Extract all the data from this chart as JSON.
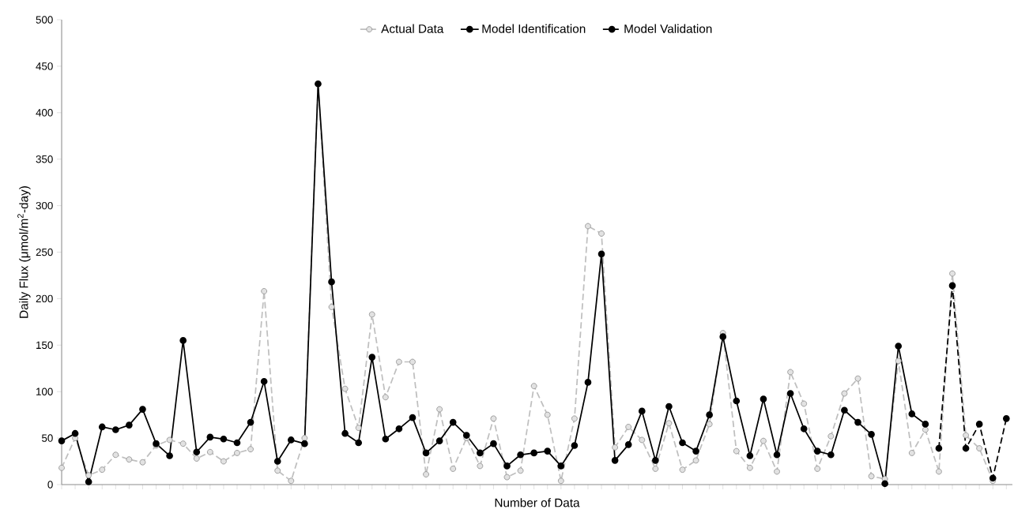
{
  "chart_data": {
    "type": "line",
    "xlabel": "Number of Data",
    "ylabel": "Daily Flux (μmol/m$^{2}$-day)",
    "categories": [
      null,
      null,
      null,
      null,
      null,
      null,
      null,
      null,
      null,
      null,
      null,
      null,
      null,
      null,
      null,
      null,
      null,
      null,
      null,
      null,
      null,
      null,
      null,
      null,
      null,
      null,
      null,
      null,
      null,
      null,
      null,
      null,
      null,
      null,
      null,
      null,
      null,
      null,
      null,
      null,
      null,
      null,
      null,
      null,
      null,
      null,
      null,
      null,
      null,
      null,
      null,
      null,
      null,
      null,
      null,
      null,
      null,
      null,
      null,
      null,
      null,
      null,
      null,
      null,
      null,
      null,
      null,
      null,
      null,
      null,
      null
    ],
    "series": [
      {
        "name": "Actual Data",
        "color": "#bfbfbf",
        "line_style": "dashed",
        "values": [
          18,
          50,
          10,
          16,
          32,
          27,
          24,
          42,
          48,
          44,
          28,
          35,
          25,
          34,
          38,
          208,
          15,
          4,
          50,
          431,
          191,
          103,
          61,
          183,
          94,
          132,
          132,
          11,
          81,
          17,
          50,
          20,
          71,
          8,
          15,
          106,
          75,
          4,
          71,
          278,
          270,
          40,
          62,
          48,
          17,
          66,
          16,
          26,
          65,
          163,
          36,
          18,
          47,
          14,
          121,
          87,
          17,
          52,
          98,
          114,
          9,
          6,
          133,
          34,
          59,
          14,
          227,
          53,
          39,
          4,
          null
        ]
      },
      {
        "name": "Model Identification",
        "color": "#000000",
        "line_style": "solid",
        "values": [
          47,
          55,
          3,
          62,
          59,
          64,
          81,
          44,
          31,
          155,
          35,
          51,
          49,
          45,
          67,
          111,
          25,
          48,
          44,
          431,
          218,
          55,
          45,
          137,
          49,
          60,
          72,
          34,
          47,
          67,
          53,
          34,
          44,
          20,
          32,
          34,
          36,
          20,
          42,
          110,
          248,
          26,
          43,
          79,
          26,
          84,
          45,
          36,
          75,
          159,
          90,
          31,
          92,
          32,
          98,
          60,
          36,
          32,
          80,
          67,
          54,
          1,
          149,
          76,
          65,
          null,
          null,
          null,
          null,
          null,
          null
        ]
      },
      {
        "name": "Model Validation",
        "color": "#000000",
        "line_style": "dashed",
        "values": [
          null,
          null,
          null,
          null,
          null,
          null,
          null,
          null,
          null,
          null,
          null,
          null,
          null,
          null,
          null,
          null,
          null,
          null,
          null,
          null,
          null,
          null,
          null,
          null,
          null,
          null,
          null,
          null,
          null,
          null,
          null,
          null,
          null,
          null,
          null,
          null,
          null,
          null,
          null,
          null,
          null,
          null,
          null,
          null,
          null,
          null,
          null,
          null,
          null,
          null,
          null,
          null,
          null,
          null,
          null,
          null,
          null,
          null,
          null,
          null,
          null,
          null,
          null,
          null,
          null,
          39,
          214,
          39,
          65,
          7,
          71
        ]
      }
    ],
    "ylim": [
      0,
      500
    ],
    "yticks": [
      0,
      50,
      100,
      150,
      200,
      250,
      300,
      350,
      400,
      450,
      500
    ],
    "marker": "circle",
    "legend": "top",
    "grid": false
  }
}
